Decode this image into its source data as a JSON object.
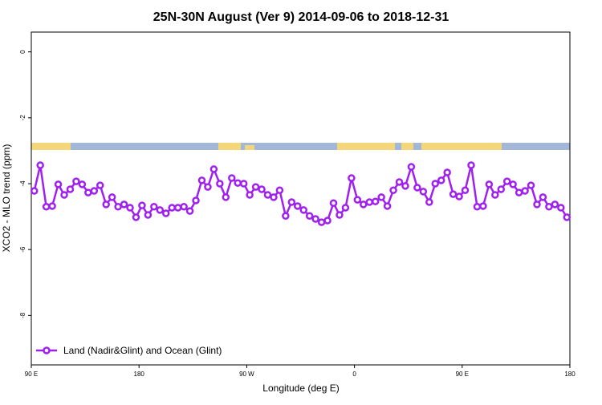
{
  "chart_data": {
    "type": "line",
    "title": "25N-30N August (Ver 9)   2014-09-06 to 2018-12-31",
    "x_label": "Longitude (deg E)",
    "y_label": "XCO2 - MLO trend (ppm)",
    "xlim": [
      90,
      540
    ],
    "xticks": [
      {
        "value": 90,
        "label": "90 E"
      },
      180,
      {
        "value": 270,
        "label": "90 W"
      },
      {
        "value": 360,
        "label": "0"
      },
      {
        "value": 450,
        "label": "90 E"
      },
      {
        "value": 540,
        "label": "180"
      }
    ],
    "ylim": [
      -9.5,
      0.6
    ],
    "yticks": [
      0,
      -2,
      -4,
      -6,
      -8
    ],
    "legend": "bottom-left",
    "x": [
      92.5,
      97.5,
      102.5,
      107.5,
      112.5,
      117.5,
      122.5,
      127.5,
      132.5,
      137.5,
      142.5,
      147.5,
      152.5,
      157.5,
      162.5,
      167.5,
      172.5,
      177.5,
      182.5,
      187.5,
      192.5,
      197.5,
      202.5,
      207.5,
      212.5,
      217.5,
      222.5,
      227.5,
      232.5,
      237.5,
      242.5,
      247.5,
      252.5,
      257.5,
      262.5,
      267.5,
      272.5,
      277.5,
      282.5,
      287.5,
      292.5,
      297.5,
      302.5,
      307.5,
      312.5,
      317.5,
      322.5,
      327.5,
      332.5,
      337.5,
      342.5,
      347.5,
      352.5,
      357.5,
      362.5,
      367.5,
      372.5,
      377.5,
      382.5,
      387.5,
      392.5,
      397.5,
      402.5,
      407.5,
      412.5,
      417.5,
      422.5,
      427.5,
      432.5,
      437.5,
      442.5,
      447.5,
      452.5,
      457.5,
      462.5,
      467.5,
      472.5,
      477.5,
      482.5,
      487.5,
      492.5,
      497.5,
      502.5,
      507.5,
      512.5,
      517.5,
      522.5,
      527.5,
      532.5,
      537.5
    ],
    "series": [
      {
        "name": "Land (Nadir&Glint) and Ocean (Glint)",
        "color": "#a020f0",
        "values": [
          -4.22,
          -3.44,
          -4.7,
          -4.68,
          -4.02,
          -4.34,
          -4.17,
          -3.93,
          -4.02,
          -4.27,
          -4.22,
          -4.05,
          -4.63,
          -4.41,
          -4.7,
          -4.63,
          -4.73,
          -5.02,
          -4.66,
          -4.95,
          -4.7,
          -4.8,
          -4.9,
          -4.73,
          -4.73,
          -4.7,
          -4.83,
          -4.51,
          -3.9,
          -4.1,
          -3.56,
          -4.0,
          -4.41,
          -3.83,
          -3.98,
          -4.0,
          -4.34,
          -4.1,
          -4.17,
          -4.34,
          -4.41,
          -4.2,
          -4.98,
          -4.56,
          -4.68,
          -4.8,
          -4.98,
          -5.07,
          -5.17,
          -5.12,
          -4.59,
          -4.95,
          -4.73,
          -3.83,
          -4.49,
          -4.63,
          -4.56,
          -4.54,
          -4.41,
          -4.68,
          -4.2,
          -3.95,
          -4.07,
          -3.49,
          -4.12,
          -4.24,
          -4.56,
          -4.0,
          -3.9,
          -3.66,
          -4.32,
          -4.39,
          -4.2,
          -3.44,
          -4.7,
          -4.68,
          -4.02,
          -4.34,
          -4.17,
          -3.93,
          -4.02,
          -4.27,
          -4.22,
          -4.05,
          -4.63,
          -4.41,
          -4.7,
          -4.63,
          -4.73,
          -5.02
        ]
      }
    ]
  }
}
